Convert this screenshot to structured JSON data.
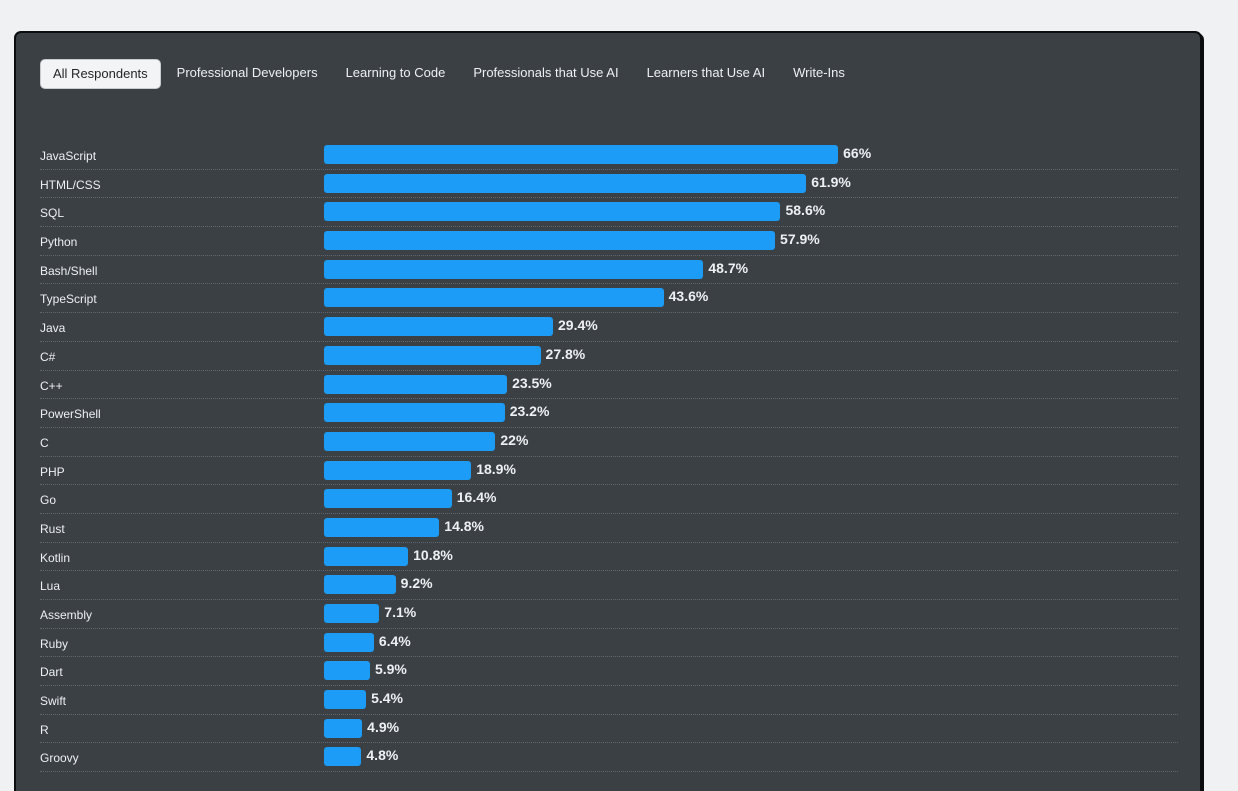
{
  "tabs": [
    {
      "label": "All Respondents",
      "active": true
    },
    {
      "label": "Professional Developers",
      "active": false
    },
    {
      "label": "Learning to Code",
      "active": false
    },
    {
      "label": "Professionals that Use AI",
      "active": false
    },
    {
      "label": "Learners that Use AI",
      "active": false
    },
    {
      "label": "Write-Ins",
      "active": false
    }
  ],
  "colors": {
    "bar": "#1c9bf7",
    "background": "#3b4045"
  },
  "chart_data": {
    "type": "bar",
    "orientation": "horizontal",
    "xlim": [
      0,
      100
    ],
    "unit": "%",
    "categories": [
      "JavaScript",
      "HTML/CSS",
      "SQL",
      "Python",
      "Bash/Shell",
      "TypeScript",
      "Java",
      "C#",
      "C++",
      "PowerShell",
      "C",
      "PHP",
      "Go",
      "Rust",
      "Kotlin",
      "Lua",
      "Assembly",
      "Ruby",
      "Dart",
      "Swift",
      "R",
      "Groovy"
    ],
    "values": [
      66,
      61.9,
      58.6,
      57.9,
      48.7,
      43.6,
      29.4,
      27.8,
      23.5,
      23.2,
      22,
      18.9,
      16.4,
      14.8,
      10.8,
      9.2,
      7.1,
      6.4,
      5.9,
      5.4,
      4.9,
      4.8
    ],
    "labels": [
      "66%",
      "61.9%",
      "58.6%",
      "57.9%",
      "48.7%",
      "43.6%",
      "29.4%",
      "27.8%",
      "23.5%",
      "23.2%",
      "22%",
      "18.9%",
      "16.4%",
      "14.8%",
      "10.8%",
      "9.2%",
      "7.1%",
      "6.4%",
      "5.9%",
      "5.4%",
      "4.9%",
      "4.8%"
    ]
  }
}
